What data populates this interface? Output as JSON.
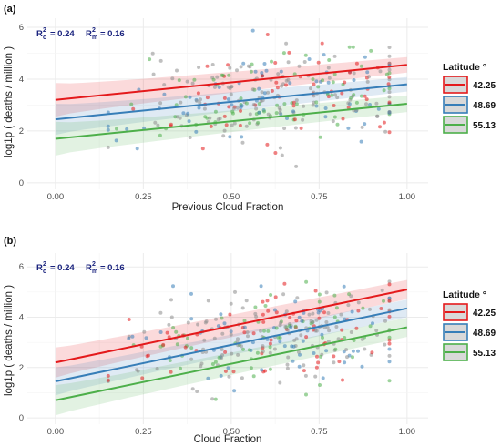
{
  "chart_data": [
    {
      "type": "scatter",
      "panel_label": "(a)",
      "xlabel": "Previous Cloud Fraction",
      "ylabel": "log1p ( deaths / million )",
      "xlim": [
        -0.08,
        1.06
      ],
      "ylim": [
        -0.25,
        6.35
      ],
      "x_ticks": [
        0.0,
        0.25,
        0.5,
        0.75,
        1.0
      ],
      "x_tick_labels": [
        "0.00",
        "0.25",
        "0.50",
        "0.75",
        "1.00"
      ],
      "y_ticks": [
        0,
        2,
        4,
        6
      ],
      "y_tick_labels": [
        "0",
        "2",
        "4",
        "6"
      ],
      "grid": true,
      "annotation": {
        "r2c_label": "R",
        "r2c_sup": "2",
        "r2c_sub": "c",
        "r2c_value": "= 0.24",
        "r2m_label": "R",
        "r2m_sup": "2",
        "r2m_sub": "m",
        "r2m_value": "= 0.16"
      },
      "legend": {
        "title": "Latitude °",
        "placement": "right"
      },
      "series": [
        {
          "name": "42.25",
          "color": "#e41a1c",
          "line": {
            "x": [
              0,
              1
            ],
            "y": [
              3.2,
              4.55
            ]
          },
          "band_halfwidth": [
            0.65,
            0.3
          ]
        },
        {
          "name": "48.69",
          "color": "#377eb8",
          "line": {
            "x": [
              0,
              1
            ],
            "y": [
              2.45,
              3.8
            ]
          },
          "band_halfwidth": [
            0.6,
            0.28
          ]
        },
        {
          "name": "55.13",
          "color": "#4daf4a",
          "line": {
            "x": [
              0,
              1
            ],
            "y": [
              1.7,
              3.05
            ]
          },
          "band_halfwidth": [
            0.65,
            0.32
          ]
        }
      ],
      "point_cloud": {
        "x_range": [
          0.15,
          0.95
        ],
        "y_range": [
          0,
          6.3
        ],
        "count": 340,
        "seed": 11,
        "x_center": 0.62
      }
    },
    {
      "type": "scatter",
      "panel_label": "(b)",
      "xlabel": "Cloud Fraction",
      "ylabel": "log1p ( deaths / million )",
      "xlim": [
        -0.08,
        1.06
      ],
      "ylim": [
        -0.25,
        6.55
      ],
      "x_ticks": [
        0.0,
        0.25,
        0.5,
        0.75,
        1.0
      ],
      "x_tick_labels": [
        "0.00",
        "0.25",
        "0.50",
        "0.75",
        "1.00"
      ],
      "y_ticks": [
        0,
        2,
        4,
        6
      ],
      "y_tick_labels": [
        "0",
        "2",
        "4",
        "6"
      ],
      "grid": true,
      "annotation": {
        "r2c_label": "R",
        "r2c_sup": "2",
        "r2c_sub": "c",
        "r2c_value": "= 0.24",
        "r2m_label": "R",
        "r2m_sup": "2",
        "r2m_sub": "m",
        "r2m_value": "= 0.16"
      },
      "legend": {
        "title": "Latitude °",
        "placement": "right"
      },
      "series": [
        {
          "name": "42.25",
          "color": "#e41a1c",
          "line": {
            "x": [
              0,
              1
            ],
            "y": [
              2.2,
              5.1
            ]
          },
          "band_halfwidth": [
            0.6,
            0.38
          ]
        },
        {
          "name": "48.69",
          "color": "#377eb8",
          "line": {
            "x": [
              0,
              1
            ],
            "y": [
              1.45,
              4.35
            ]
          },
          "band_halfwidth": [
            0.55,
            0.35
          ]
        },
        {
          "name": "55.13",
          "color": "#4daf4a",
          "line": {
            "x": [
              0,
              1
            ],
            "y": [
              0.7,
              3.6
            ]
          },
          "band_halfwidth": [
            0.6,
            0.38
          ]
        }
      ],
      "point_cloud": {
        "x_range": [
          0.15,
          0.95
        ],
        "y_range": [
          0,
          6.3
        ],
        "count": 340,
        "seed": 29,
        "x_center": 0.62
      }
    }
  ]
}
